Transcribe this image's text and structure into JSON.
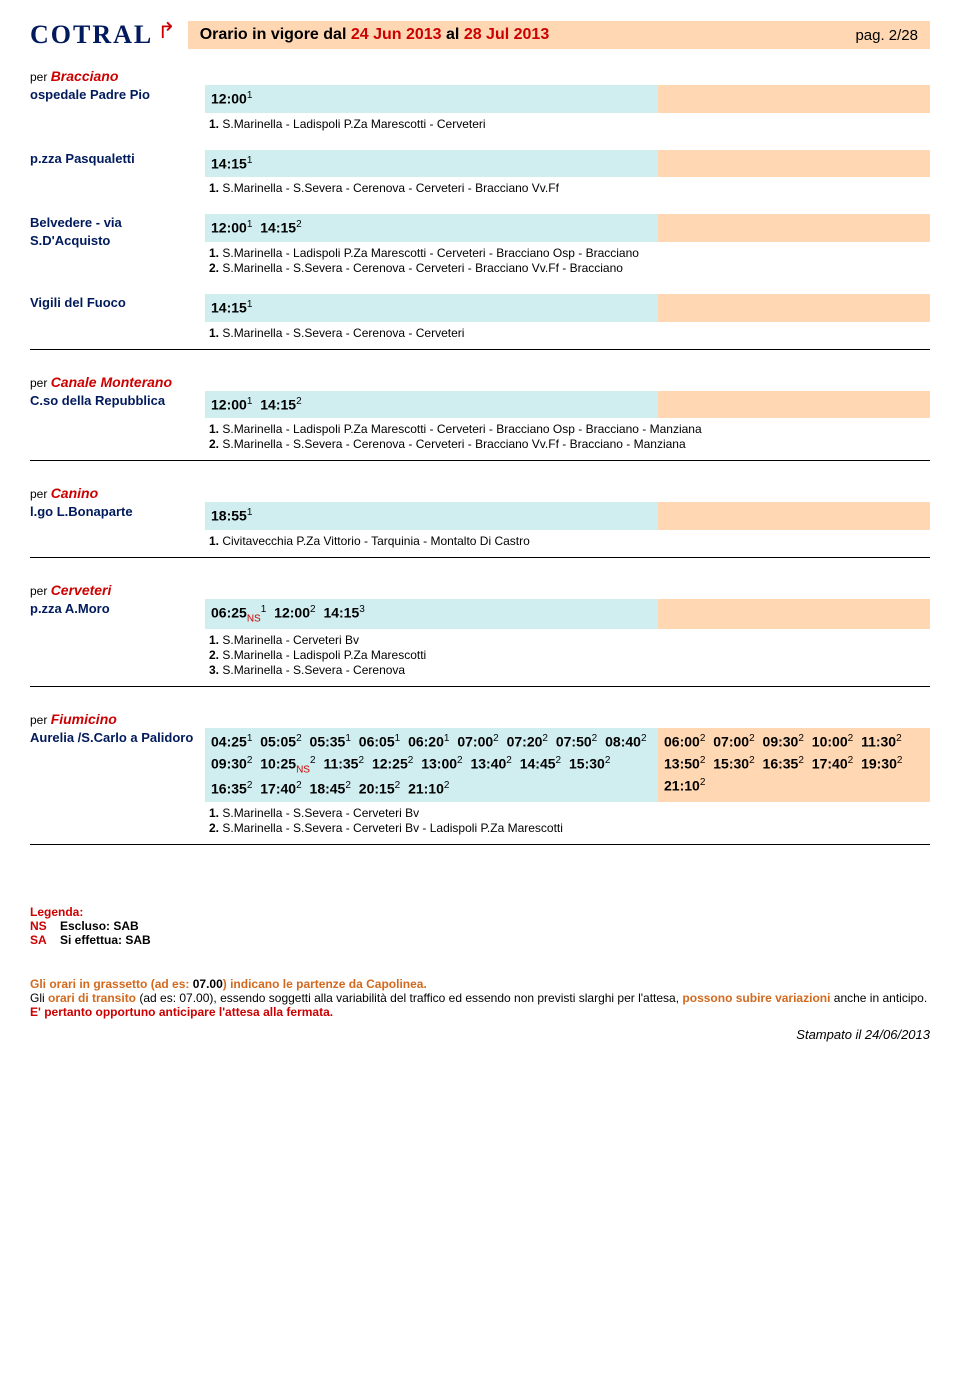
{
  "header": {
    "logo": "COTRAL",
    "title_pre": "Orario in vigore dal ",
    "date1": "24 Jun 2013",
    "title_mid": " al ",
    "date2": "28 Jul 2013",
    "pag": "pag. 2/28"
  },
  "colors": {
    "blue_bg": "#d0edf0",
    "orange_bg": "#ffd8b3",
    "red": "#c00",
    "navy": "#001a5c"
  },
  "sections": [
    {
      "per": "per",
      "dest": "Bracciano",
      "rows": [
        {
          "stop": "ospedale Padre Pio",
          "times": [
            {
              "t": "12:00",
              "s": "1"
            }
          ],
          "otimes": [],
          "notes": [
            "1.  S.Marinella - Ladispoli P.Za Marescotti - Cerveteri"
          ]
        },
        {
          "stop": "p.zza Pasqualetti",
          "times": [
            {
              "t": "14:15",
              "s": "1"
            }
          ],
          "otimes": [],
          "notes": [
            "1.  S.Marinella - S.Severa - Cerenova - Cerveteri - Bracciano Vv.Ff"
          ]
        },
        {
          "stop": "Belvedere - via S.D'Acquisto",
          "times": [
            {
              "t": "12:00",
              "s": "1"
            },
            {
              "t": "14:15",
              "s": "2"
            }
          ],
          "otimes": [],
          "notes": [
            "1.  S.Marinella - Ladispoli P.Za Marescotti - Cerveteri - Bracciano Osp - Bracciano",
            "2.  S.Marinella - S.Severa - Cerenova - Cerveteri - Bracciano Vv.Ff - Bracciano"
          ]
        },
        {
          "stop": "Vigili del Fuoco",
          "times": [
            {
              "t": "14:15",
              "s": "1"
            }
          ],
          "otimes": [],
          "notes": [
            "1.  S.Marinella - S.Severa - Cerenova - Cerveteri"
          ]
        }
      ],
      "hr": true
    },
    {
      "per": "per",
      "dest": "Canale Monterano",
      "rows": [
        {
          "stop": "C.so della Repubblica",
          "times": [
            {
              "t": "12:00",
              "s": "1"
            },
            {
              "t": "14:15",
              "s": "2"
            }
          ],
          "otimes": [],
          "notes": [
            "1.  S.Marinella - Ladispoli P.Za Marescotti - Cerveteri - Bracciano Osp - Bracciano - Manziana",
            "2.  S.Marinella - S.Severa - Cerenova - Cerveteri - Bracciano Vv.Ff - Bracciano - Manziana"
          ]
        }
      ],
      "hr": true
    },
    {
      "per": "per",
      "dest": "Canino",
      "rows": [
        {
          "stop": "l.go L.Bonaparte",
          "times": [
            {
              "t": "18:55",
              "s": "1"
            }
          ],
          "otimes": [],
          "notes": [
            "1.  Civitavecchia P.Za Vittorio - Tarquinia - Montalto Di Castro"
          ]
        }
      ],
      "hr": true
    },
    {
      "per": "per",
      "dest": "Cerveteri",
      "rows": [
        {
          "stop": "p.zza A.Moro",
          "times": [
            {
              "t": "06:25",
              "sub": "NS",
              "s": "1"
            },
            {
              "t": "12:00",
              "s": "2"
            },
            {
              "t": "14:15",
              "s": "3"
            }
          ],
          "otimes": [],
          "notes": [
            "1.  S.Marinella - Cerveteri Bv",
            "2.  S.Marinella - Ladispoli P.Za Marescotti",
            "3.  S.Marinella - S.Severa - Cerenova"
          ]
        }
      ],
      "hr": true
    },
    {
      "per": "per",
      "dest": "Fiumicino",
      "rows": [
        {
          "stop": "Aurelia /S.Carlo a Palidoro",
          "times": [
            {
              "t": "04:25",
              "s": "1"
            },
            {
              "t": "05:05",
              "s": "2"
            },
            {
              "t": "05:35",
              "s": "1"
            },
            {
              "t": "06:05",
              "s": "1"
            },
            {
              "t": "06:20",
              "s": "1"
            },
            {
              "t": "07:00",
              "s": "2"
            },
            {
              "t": "07:20",
              "s": "2"
            },
            {
              "t": "07:50",
              "s": "2"
            },
            {
              "t": "08:40",
              "s": "2"
            },
            {
              "t": "09:30",
              "s": "2"
            },
            {
              "t": "10:25",
              "sub": "NS",
              "s": "2"
            },
            {
              "t": "11:35",
              "s": "2"
            },
            {
              "t": "12:25",
              "s": "2"
            },
            {
              "t": "13:00",
              "s": "2"
            },
            {
              "t": "13:40",
              "s": "2"
            },
            {
              "t": "14:45",
              "s": "2"
            },
            {
              "t": "15:30",
              "s": "2"
            },
            {
              "t": "16:35",
              "s": "2"
            },
            {
              "t": "17:40",
              "s": "2"
            },
            {
              "t": "18:45",
              "s": "2"
            },
            {
              "t": "20:15",
              "s": "2"
            },
            {
              "t": "21:10",
              "s": "2"
            }
          ],
          "otimes": [
            {
              "t": "06:00",
              "s": "2"
            },
            {
              "t": "07:00",
              "s": "2"
            },
            {
              "t": "09:30",
              "s": "2"
            },
            {
              "t": "10:00",
              "s": "2"
            },
            {
              "t": "11:30",
              "s": "2"
            },
            {
              "t": "13:50",
              "s": "2"
            },
            {
              "t": "15:30",
              "s": "2"
            },
            {
              "t": "16:35",
              "s": "2"
            },
            {
              "t": "17:40",
              "s": "2"
            },
            {
              "t": "19:30",
              "s": "2"
            },
            {
              "t": "21:10",
              "s": "2"
            }
          ],
          "notes": [
            "1.  S.Marinella - S.Severa - Cerveteri Bv",
            "2.  S.Marinella - S.Severa - Cerveteri Bv - Ladispoli P.Za Marescotti"
          ]
        }
      ],
      "hr": true
    }
  ],
  "legend": {
    "title": "Legenda:",
    "items": [
      {
        "code": "NS",
        "text": "Escluso: SAB"
      },
      {
        "code": "SA",
        "text": "Si effettua: SAB"
      }
    ]
  },
  "footer": {
    "l1a": "Gli orari in grassetto",
    "l1b": " (ad es: ",
    "l1c": "07.00",
    "l1d": ") indicano le partenze da Capolinea.",
    "l2a": "Gli ",
    "l2b": "orari di transito",
    "l2c": " (ad es: 07.00), essendo soggetti alla variabilità del traffico ed essendo non previsti slarghi per l'attesa, ",
    "l2d": "possono subire variazioni",
    "l2e": " anche in anticipo. ",
    "l2f": "E' pertanto opportuno anticipare l'attesa alla fermata.",
    "printed": "Stampato il 24/06/2013"
  }
}
